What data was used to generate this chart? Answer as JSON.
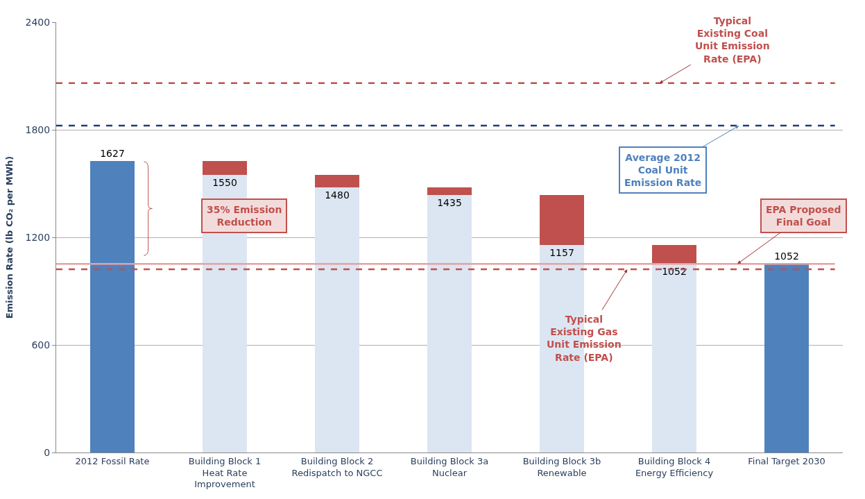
{
  "chart_data": {
    "type": "bar",
    "stacked": true,
    "categories": [
      "2012 Fossil Rate",
      "Building Block 1 Heat Rate Improvement",
      "Building Block 2 Redispatch to NGCC",
      "Building Block 3a Nuclear",
      "Building Block 3b Renewable",
      "Building Block 4 Energy Efficiency",
      "Final Target 2030"
    ],
    "series": [
      {
        "color": "#4f81bd",
        "values": [
          1627,
          null,
          null,
          null,
          null,
          null,
          1052
        ],
        "value_labels": [
          "1627",
          null,
          null,
          null,
          null,
          null,
          "1052"
        ]
      },
      {
        "color": "#dce6f2",
        "values": [
          null,
          1550,
          1480,
          1435,
          1157,
          1052,
          null
        ],
        "value_labels": [
          null,
          "1550",
          "1480",
          "1435",
          "1157",
          "1052",
          null
        ]
      },
      {
        "color": "#c0504d",
        "values": [
          null,
          77,
          70,
          45,
          278,
          105,
          null
        ]
      }
    ],
    "ylabel": "Emission Rate (lb CO₂ per MWh)",
    "ylim": [
      0,
      2400
    ],
    "yticks": [
      0,
      600,
      1200,
      1800,
      2400
    ],
    "grid": "y",
    "ref_lines": [
      {
        "axis": "y",
        "value": 2060,
        "label": "Typical Existing Coal Unit Emission Rate (EPA)",
        "color": "#c0504d",
        "line_style": "dashed"
      },
      {
        "axis": "y",
        "value": 1823,
        "label": "Average 2012 Coal Unit Emission Rate",
        "color": "#1f3c78",
        "line_style": "dashed"
      },
      {
        "axis": "y",
        "value": 1052,
        "label": "EPA Proposed Final Goal",
        "color": "#e8a0a0",
        "line_style": "solid"
      },
      {
        "axis": "y",
        "value": 1022,
        "label": "Typical Existing Gas Unit Emission Rate (EPA)",
        "color": "#c0504d",
        "line_style": "dashed"
      }
    ],
    "annotations": [
      "35% Emission Reduction"
    ]
  }
}
